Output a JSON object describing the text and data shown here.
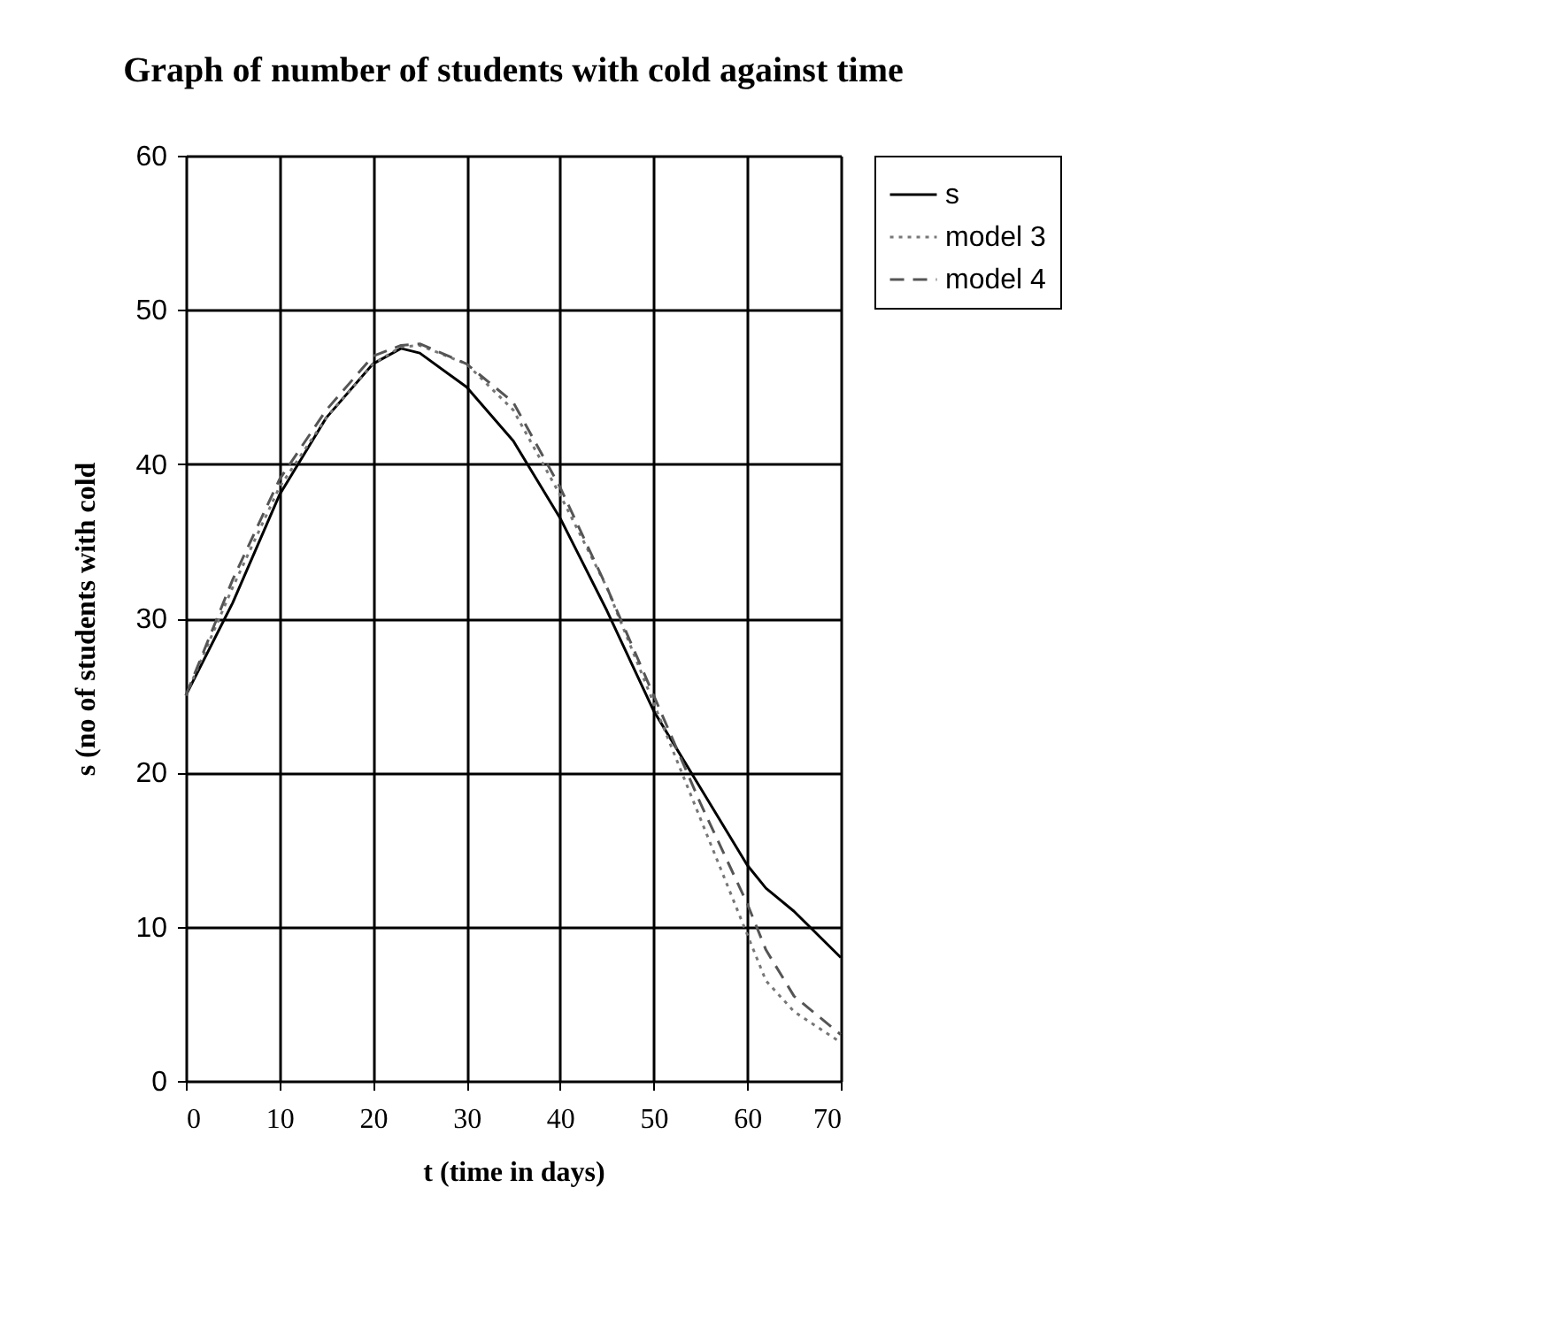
{
  "chart_data": {
    "type": "line",
    "title": "Graph of number of students with cold against time",
    "xlabel": "t  (time in days)",
    "ylabel": "s  (no of students with cold",
    "x": [
      0,
      5,
      10,
      15,
      20,
      23,
      25,
      30,
      35,
      40,
      45,
      50,
      55,
      60,
      62,
      65,
      70
    ],
    "series": [
      {
        "name": "s",
        "color": "#000000",
        "line_style": "solid",
        "values": [
          25,
          31,
          38,
          43,
          46.5,
          47.5,
          47.2,
          45,
          41.5,
          36.5,
          30.5,
          24,
          19,
          14,
          12.5,
          11,
          8
        ]
      },
      {
        "name": "model 3",
        "color": "#777777",
        "line_style": "dotted",
        "values": [
          25,
          32,
          38.5,
          43,
          46.5,
          47.6,
          47.7,
          46.5,
          43.5,
          38,
          32,
          24.5,
          17,
          9.5,
          6.5,
          4.5,
          2.5
        ]
      },
      {
        "name": "model 4",
        "color": "#555555",
        "line_style": "dashed",
        "values": [
          25,
          32.5,
          39,
          43.5,
          47,
          47.7,
          47.8,
          46.5,
          44,
          38.5,
          32,
          25,
          18,
          11.5,
          8.5,
          5.5,
          3
        ]
      }
    ],
    "xlim": [
      0,
      70
    ],
    "xticks": [
      0,
      10,
      20,
      30,
      40,
      50,
      60,
      70
    ],
    "ylim": [
      0,
      60
    ],
    "yticks": [
      0,
      10,
      20,
      30,
      40,
      50,
      60
    ],
    "grid": true,
    "legend": "right",
    "marker": "none"
  }
}
